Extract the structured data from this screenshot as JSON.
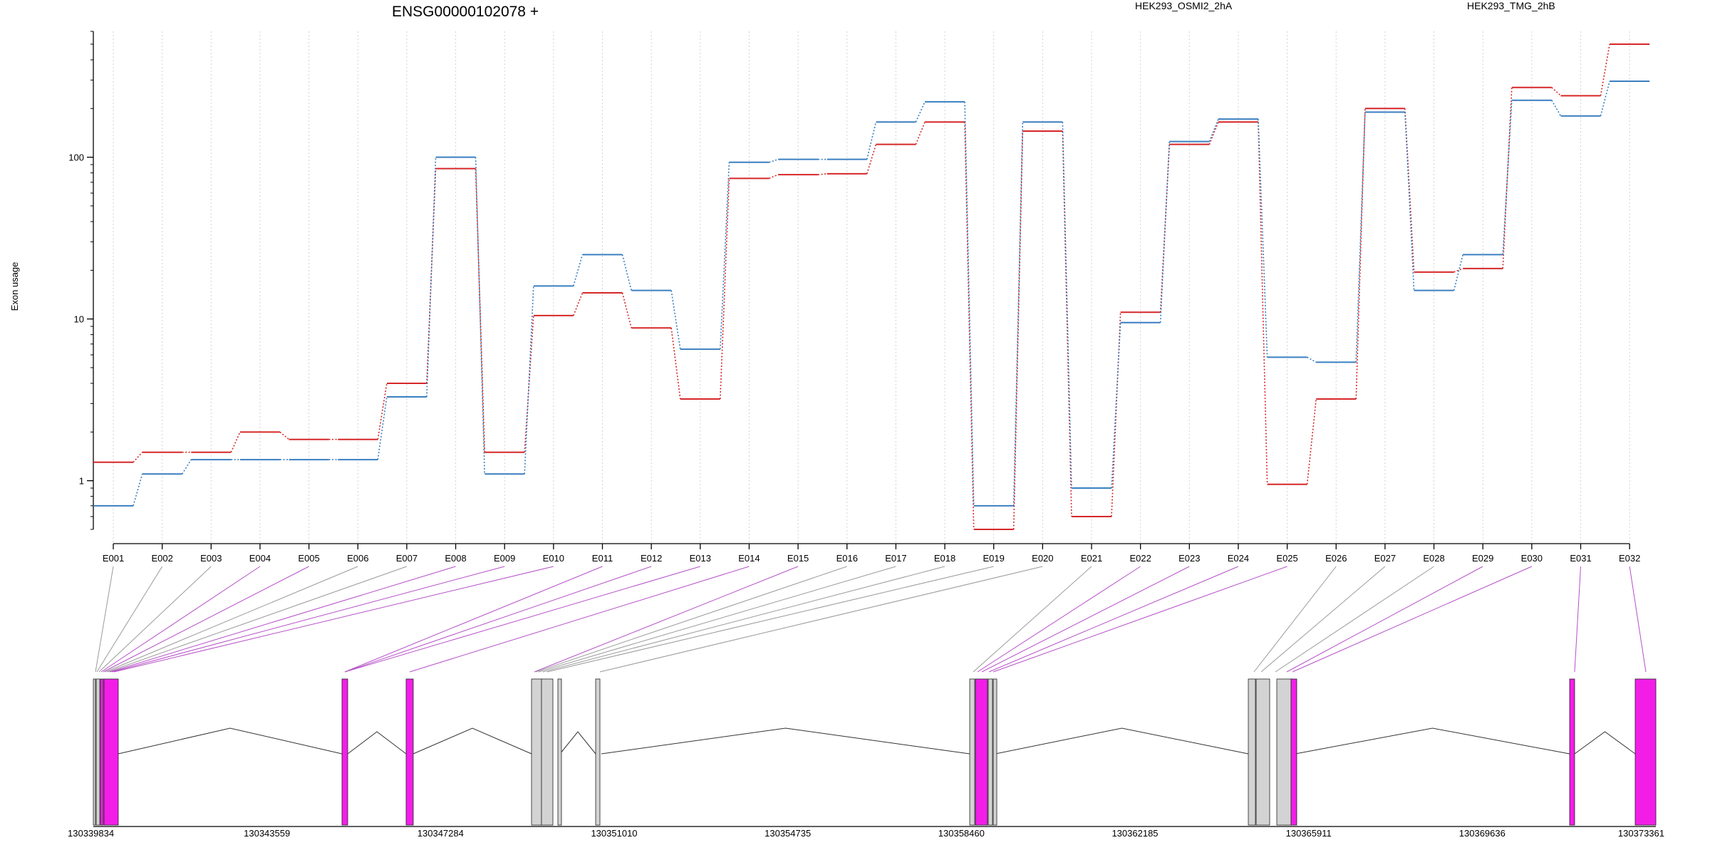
{
  "chart_data": {
    "type": "line",
    "title": "ENSG00000102078 +",
    "ylabel": "Exon usage",
    "y_scale": "log",
    "ylim": [
      0.5,
      600
    ],
    "yticks": [
      {
        "value": 1,
        "label": "1"
      },
      {
        "value": 10,
        "label": "10"
      },
      {
        "value": 100,
        "label": "100"
      }
    ],
    "grid": "vertical dotted lines at each exon",
    "categories": [
      "E001",
      "E002",
      "E003",
      "E004",
      "E005",
      "E006",
      "E007",
      "E008",
      "E009",
      "E010",
      "E011",
      "E012",
      "E013",
      "E014",
      "E015",
      "E016",
      "E017",
      "E018",
      "E019",
      "E020",
      "E021",
      "E022",
      "E023",
      "E024",
      "E025",
      "E026",
      "E027",
      "E028",
      "E029",
      "E030",
      "E031",
      "E032"
    ],
    "series": [
      {
        "name": "HEK293_OSMI2_2hA",
        "color": "#d62728",
        "values": [
          1.3,
          1.5,
          1.5,
          2.0,
          1.8,
          1.8,
          4.0,
          85,
          1.5,
          10.5,
          14.5,
          8.8,
          3.2,
          74,
          78,
          79,
          120,
          165,
          0.5,
          145,
          0.6,
          11,
          120,
          165,
          0.95,
          3.2,
          200,
          19.5,
          20.5,
          270,
          240,
          500
        ]
      },
      {
        "name": "HEK293_TMG_2hB",
        "color": "#3a7fc1",
        "values": [
          0.7,
          1.1,
          1.35,
          1.35,
          1.35,
          1.35,
          3.3,
          100,
          1.1,
          16,
          25,
          15,
          6.5,
          93,
          97,
          97,
          165,
          220,
          0.7,
          165,
          0.9,
          9.5,
          125,
          172,
          5.8,
          5.4,
          190,
          15,
          25,
          225,
          180,
          295
        ]
      }
    ],
    "gene_model": {
      "coord_labels": [
        "130339834",
        "130343559",
        "130347284",
        "130351010",
        "130354735",
        "130358460",
        "130362185",
        "130365911",
        "130369636",
        "130373361"
      ],
      "exon_colors": {
        "differential": "#f21ee8",
        "other": "#d3d3d3"
      },
      "exon_flags": [
        "other",
        "other",
        "other",
        "differential",
        "differential",
        "other",
        "other",
        "differential",
        "differential",
        "differential",
        "differential",
        "differential",
        "differential",
        "differential",
        "differential",
        "other",
        "other",
        "other",
        "other",
        "other",
        "other",
        "differential",
        "differential",
        "differential",
        "differential",
        "other",
        "other",
        "other",
        "differential",
        "differential",
        "differential",
        "differential"
      ]
    }
  }
}
